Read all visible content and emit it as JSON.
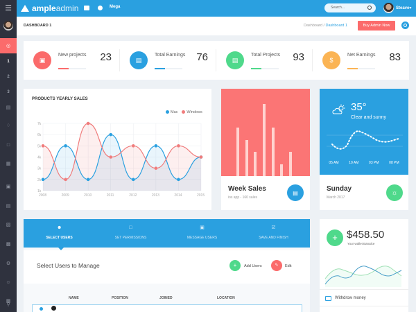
{
  "topbar": {
    "logo_bold": "ample",
    "logo_light": "admin",
    "mega_label": "Mega",
    "search_placeholder": "Search...",
    "user_name": "Steave",
    "icons": [
      "menu-icon",
      "mail-icon",
      "check-circle-icon",
      "search-icon",
      "avatar"
    ]
  },
  "sidebar": {
    "items": [
      {
        "icon": "dashboard-icon",
        "active": true
      },
      {
        "label": "1"
      },
      {
        "label": "2"
      },
      {
        "label": "3"
      },
      {
        "icon": "cart-icon"
      },
      {
        "icon": "paint-icon"
      },
      {
        "icon": "copy-icon"
      },
      {
        "icon": "grid-icon"
      },
      {
        "icon": "clipboard-icon"
      },
      {
        "icon": "calendar-icon"
      },
      {
        "icon": "layout-icon"
      },
      {
        "icon": "chart-icon"
      },
      {
        "icon": "settings-icon"
      },
      {
        "icon": "smile-icon"
      },
      {
        "icon": "apps-icon"
      },
      {
        "icon": "location-icon"
      }
    ]
  },
  "header": {
    "page_title": "DASHBOARD 1",
    "breadcrumb": [
      "Dashboard",
      "Dashboard 1"
    ],
    "buy_button": "Buy Admin Now"
  },
  "stats": [
    {
      "label": "New projects",
      "value": "23",
      "color": "#fb6b6b",
      "icon": "clipboard-icon"
    },
    {
      "label": "Total Earnings",
      "value": "76",
      "color": "#2aa0e0",
      "icon": "wallet-icon"
    },
    {
      "label": "Total Projects",
      "value": "93",
      "color": "#4fd98b",
      "icon": "cart-icon"
    },
    {
      "label": "Net Earnings",
      "value": "83",
      "color": "#fbb454",
      "icon": "dollar-icon"
    }
  ],
  "chart_data": {
    "type": "area",
    "title": "PRODUCTS YEARLY SALES",
    "categories": [
      "2008",
      "2009",
      "2010",
      "2011",
      "2012",
      "2013",
      "2014",
      "2015"
    ],
    "series": [
      {
        "name": "Mac",
        "color": "#2aa0e0",
        "values": [
          2,
          5,
          2,
          6,
          2,
          5,
          2,
          4
        ]
      },
      {
        "name": "Windows",
        "color": "#f07c7c",
        "values": [
          5,
          2,
          7,
          4,
          5,
          3,
          5,
          4
        ]
      }
    ],
    "yticks": [
      "1k",
      "2k",
      "3k",
      "4k",
      "5k",
      "6k",
      "7k"
    ],
    "ylim": [
      1,
      7
    ],
    "xlabel": "",
    "ylabel": "",
    "legend_position": "top-right",
    "grid": true
  },
  "week_sales": {
    "title": "Week Sales",
    "subtitle": "ios app - 160 sales",
    "bars": [
      60,
      45,
      30,
      90,
      60,
      15,
      30
    ]
  },
  "weather": {
    "temp": "35°",
    "condition": "Clear and sunny",
    "times": [
      "05 AM",
      "10 AM",
      "03 PM",
      "08 PM"
    ],
    "day": "Sunday",
    "date": "March 2017"
  },
  "wizard": {
    "tabs": [
      {
        "label": "SELECT USERS",
        "icon": "user-icon",
        "active": true
      },
      {
        "label": "SET PERMISSIONS",
        "icon": "lock-icon"
      },
      {
        "label": "MESSAGE USERS",
        "icon": "message-icon"
      },
      {
        "label": "SAVE AND FINISH",
        "icon": "check-square-icon"
      }
    ],
    "title": "Select Users to Manage",
    "add_label": "Add Users",
    "edit_label": "Edit",
    "columns": [
      "NAME",
      "POSITION",
      "JOINED",
      "LOCATION"
    ]
  },
  "wallet": {
    "amount": "$458.50",
    "subtitle": "Your wallet Banalce",
    "withdraw_label": "Withdrow money"
  }
}
